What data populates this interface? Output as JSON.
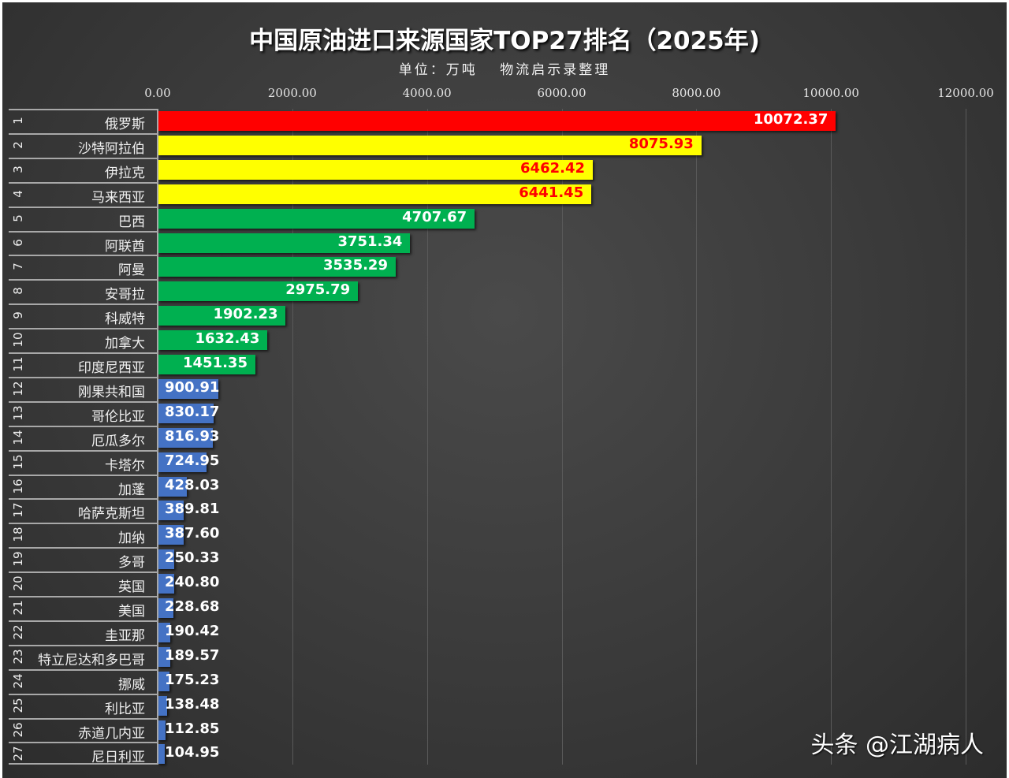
{
  "chart_data": {
    "type": "bar",
    "orientation": "horizontal",
    "title": "中国原油进口来源国家TOP27排名（2025年)",
    "subtitle": "单位：万吨　 物流启示录整理",
    "xlim": [
      0,
      12000
    ],
    "xticks": [
      "0.00",
      "2000.00",
      "4000.00",
      "6000.00",
      "8000.00",
      "10000.00",
      "12000.00"
    ],
    "tick_values": [
      0,
      2000,
      4000,
      6000,
      8000,
      10000,
      12000
    ],
    "grid": true,
    "colors": {
      "top1": "#ff0000",
      "top2_4": "#ffff00",
      "green": "#00b050",
      "blue": "#4472c4"
    },
    "rows": [
      {
        "rank": "1",
        "name": "俄罗斯",
        "value": 10072.37,
        "label": "10072.37",
        "color": "#ff0000",
        "label_color": "#ffffff"
      },
      {
        "rank": "2",
        "name": "沙特阿拉伯",
        "value": 8075.93,
        "label": "8075.93",
        "color": "#ffff00",
        "label_color": "#ff0000"
      },
      {
        "rank": "3",
        "name": "伊拉克",
        "value": 6462.42,
        "label": "6462.42",
        "color": "#ffff00",
        "label_color": "#ff0000"
      },
      {
        "rank": "4",
        "name": "马来西亚",
        "value": 6441.45,
        "label": "6441.45",
        "color": "#ffff00",
        "label_color": "#ff0000"
      },
      {
        "rank": "5",
        "name": "巴西",
        "value": 4707.67,
        "label": "4707.67",
        "color": "#00b050",
        "label_color": "#ffffff"
      },
      {
        "rank": "6",
        "name": "阿联酋",
        "value": 3751.34,
        "label": "3751.34",
        "color": "#00b050",
        "label_color": "#ffffff"
      },
      {
        "rank": "7",
        "name": "阿曼",
        "value": 3535.29,
        "label": "3535.29",
        "color": "#00b050",
        "label_color": "#ffffff"
      },
      {
        "rank": "8",
        "name": "安哥拉",
        "value": 2975.79,
        "label": "2975.79",
        "color": "#00b050",
        "label_color": "#ffffff"
      },
      {
        "rank": "9",
        "name": "科威特",
        "value": 1902.23,
        "label": "1902.23",
        "color": "#00b050",
        "label_color": "#ffffff"
      },
      {
        "rank": "10",
        "name": "加拿大",
        "value": 1632.43,
        "label": "1632.43",
        "color": "#00b050",
        "label_color": "#ffffff"
      },
      {
        "rank": "11",
        "name": "印度尼西亚",
        "value": 1451.35,
        "label": "1451.35",
        "color": "#00b050",
        "label_color": "#ffffff"
      },
      {
        "rank": "12",
        "name": "刚果共和国",
        "value": 900.91,
        "label": "900.91",
        "color": "#4472c4",
        "label_color": "#ffffff"
      },
      {
        "rank": "13",
        "name": "哥伦比亚",
        "value": 830.17,
        "label": "830.17",
        "color": "#4472c4",
        "label_color": "#ffffff"
      },
      {
        "rank": "14",
        "name": "厄瓜多尔",
        "value": 816.93,
        "label": "816.93",
        "color": "#4472c4",
        "label_color": "#ffffff"
      },
      {
        "rank": "15",
        "name": "卡塔尔",
        "value": 724.95,
        "label": "724.95",
        "color": "#4472c4",
        "label_color": "#ffffff"
      },
      {
        "rank": "16",
        "name": "加蓬",
        "value": 428.03,
        "label": "428.03",
        "color": "#4472c4",
        "label_color": "#ffffff"
      },
      {
        "rank": "17",
        "name": "哈萨克斯坦",
        "value": 389.81,
        "label": "389.81",
        "color": "#4472c4",
        "label_color": "#ffffff"
      },
      {
        "rank": "18",
        "name": "加纳",
        "value": 387.6,
        "label": "387.60",
        "color": "#4472c4",
        "label_color": "#ffffff"
      },
      {
        "rank": "19",
        "name": "多哥",
        "value": 250.33,
        "label": "250.33",
        "color": "#4472c4",
        "label_color": "#ffffff"
      },
      {
        "rank": "20",
        "name": "英国",
        "value": 240.8,
        "label": "240.80",
        "color": "#4472c4",
        "label_color": "#ffffff"
      },
      {
        "rank": "21",
        "name": "美国",
        "value": 228.68,
        "label": "228.68",
        "color": "#4472c4",
        "label_color": "#ffffff"
      },
      {
        "rank": "22",
        "name": "圭亚那",
        "value": 190.42,
        "label": "190.42",
        "color": "#4472c4",
        "label_color": "#ffffff"
      },
      {
        "rank": "23",
        "name": "特立尼达和多巴哥",
        "value": 189.57,
        "label": "189.57",
        "color": "#4472c4",
        "label_color": "#ffffff"
      },
      {
        "rank": "24",
        "name": "挪威",
        "value": 175.23,
        "label": "175.23",
        "color": "#4472c4",
        "label_color": "#ffffff"
      },
      {
        "rank": "25",
        "name": "利比亚",
        "value": 138.48,
        "label": "138.48",
        "color": "#4472c4",
        "label_color": "#ffffff"
      },
      {
        "rank": "26",
        "name": "赤道几内亚",
        "value": 112.85,
        "label": "112.85",
        "color": "#4472c4",
        "label_color": "#ffffff"
      },
      {
        "rank": "27",
        "name": "尼日利亚",
        "value": 104.95,
        "label": "104.95",
        "color": "#4472c4",
        "label_color": "#ffffff"
      }
    ]
  },
  "watermark": "头条 @江湖病人"
}
